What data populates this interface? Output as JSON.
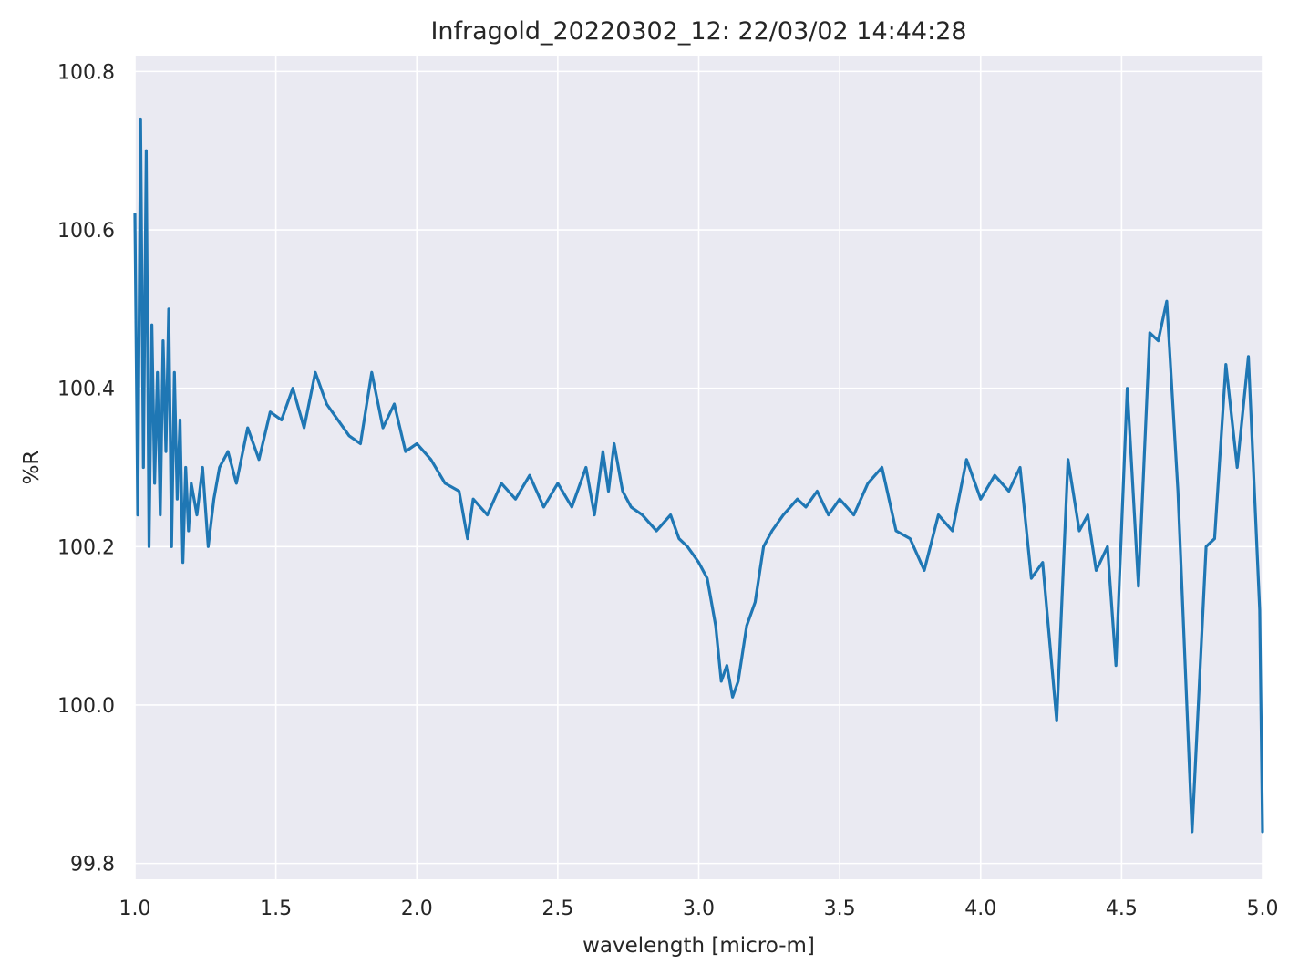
{
  "chart_data": {
    "type": "line",
    "title": "Infragold_20220302_12:  22/03/02 14:44:28",
    "xlabel": "wavelength [micro-m]",
    "ylabel": "%R",
    "xlim": [
      1.0,
      5.0
    ],
    "ylim": [
      99.78,
      100.82
    ],
    "xticks": [
      1.0,
      1.5,
      2.0,
      2.5,
      3.0,
      3.5,
      4.0,
      4.5,
      5.0
    ],
    "xtick_labels": [
      "1.0",
      "1.5",
      "2.0",
      "2.5",
      "3.0",
      "3.5",
      "4.0",
      "4.5",
      "5.0"
    ],
    "yticks": [
      99.8,
      100.0,
      100.2,
      100.4,
      100.6,
      100.8
    ],
    "ytick_labels": [
      "99.8",
      "100.0",
      "100.2",
      "100.4",
      "100.6",
      "100.8"
    ],
    "grid": true,
    "background": "#eaeaf2",
    "grid_color": "#ffffff",
    "line_color": "#1f77b4",
    "series": [
      {
        "x": [
          1.0,
          1.01,
          1.02,
          1.03,
          1.04,
          1.05,
          1.06,
          1.07,
          1.08,
          1.09,
          1.1,
          1.11,
          1.12,
          1.13,
          1.14,
          1.15,
          1.16,
          1.17,
          1.18,
          1.19,
          1.2,
          1.22,
          1.24,
          1.26,
          1.28,
          1.3,
          1.33,
          1.36,
          1.4,
          1.44,
          1.48,
          1.52,
          1.56,
          1.6,
          1.64,
          1.68,
          1.72,
          1.76,
          1.8,
          1.84,
          1.88,
          1.92,
          1.96,
          2.0,
          2.05,
          2.1,
          2.15,
          2.18,
          2.2,
          2.25,
          2.3,
          2.35,
          2.4,
          2.45,
          2.5,
          2.55,
          2.6,
          2.63,
          2.66,
          2.68,
          2.7,
          2.73,
          2.76,
          2.8,
          2.85,
          2.9,
          2.93,
          2.96,
          3.0,
          3.03,
          3.06,
          3.08,
          3.1,
          3.12,
          3.14,
          3.17,
          3.2,
          3.23,
          3.26,
          3.3,
          3.35,
          3.38,
          3.42,
          3.46,
          3.5,
          3.55,
          3.6,
          3.65,
          3.7,
          3.75,
          3.8,
          3.85,
          3.9,
          3.95,
          4.0,
          4.05,
          4.1,
          4.14,
          4.18,
          4.22,
          4.27,
          4.31,
          4.35,
          4.38,
          4.41,
          4.45,
          4.48,
          4.52,
          4.56,
          4.6,
          4.63,
          4.66,
          4.7,
          4.75,
          4.8,
          4.83,
          4.87,
          4.91,
          4.95,
          4.99,
          5.0
        ],
        "y": [
          100.62,
          100.24,
          100.74,
          100.3,
          100.7,
          100.2,
          100.48,
          100.28,
          100.42,
          100.24,
          100.46,
          100.32,
          100.5,
          100.2,
          100.42,
          100.26,
          100.36,
          100.18,
          100.3,
          100.22,
          100.28,
          100.24,
          100.3,
          100.2,
          100.26,
          100.3,
          100.32,
          100.28,
          100.35,
          100.31,
          100.37,
          100.36,
          100.4,
          100.35,
          100.42,
          100.38,
          100.36,
          100.34,
          100.33,
          100.42,
          100.35,
          100.38,
          100.32,
          100.33,
          100.31,
          100.28,
          100.27,
          100.21,
          100.26,
          100.24,
          100.28,
          100.26,
          100.29,
          100.25,
          100.28,
          100.25,
          100.3,
          100.24,
          100.32,
          100.27,
          100.33,
          100.27,
          100.25,
          100.24,
          100.22,
          100.24,
          100.21,
          100.2,
          100.18,
          100.16,
          100.1,
          100.03,
          100.05,
          100.01,
          100.03,
          100.1,
          100.13,
          100.2,
          100.22,
          100.24,
          100.26,
          100.25,
          100.27,
          100.24,
          100.26,
          100.24,
          100.28,
          100.3,
          100.22,
          100.21,
          100.17,
          100.24,
          100.22,
          100.31,
          100.26,
          100.29,
          100.27,
          100.3,
          100.16,
          100.18,
          99.98,
          100.31,
          100.22,
          100.24,
          100.17,
          100.2,
          100.05,
          100.4,
          100.15,
          100.47,
          100.46,
          100.51,
          100.27,
          99.84,
          100.2,
          100.21,
          100.43,
          100.3,
          100.44,
          100.12,
          99.84
        ]
      }
    ]
  }
}
